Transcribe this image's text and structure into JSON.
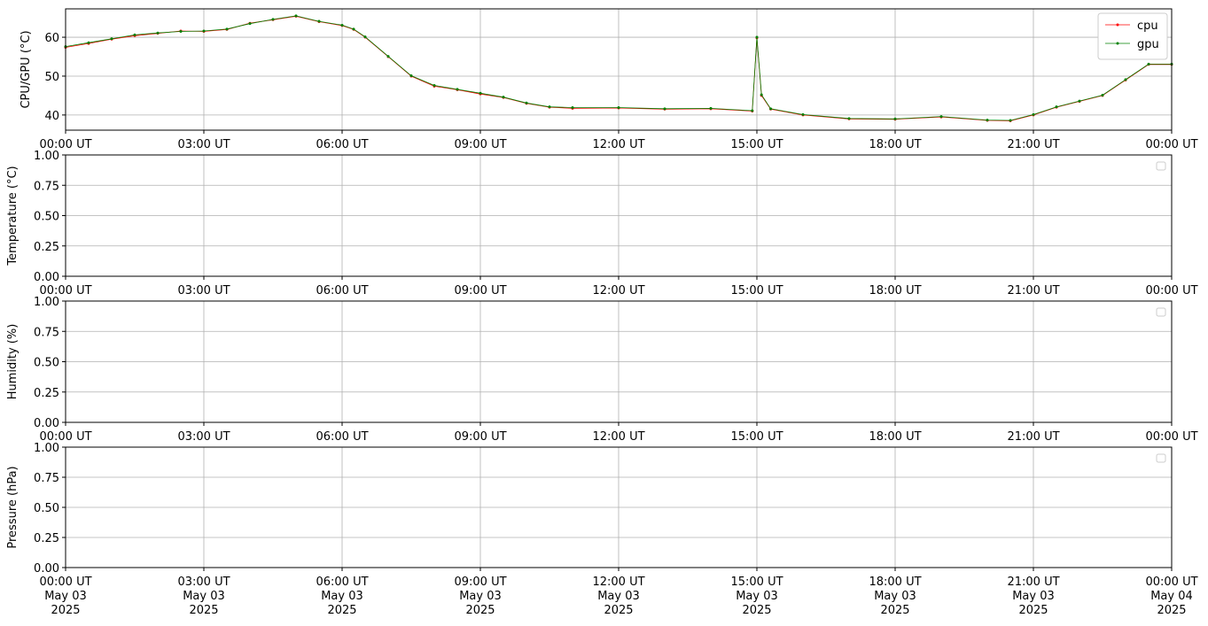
{
  "chart_data": [
    {
      "type": "line",
      "ylabel": "CPU/GPU (°C)",
      "grid": true,
      "legend": "upper right",
      "xlim": [
        0,
        24
      ],
      "xticks": [
        {
          "value": 0,
          "label": "00:00 UT"
        },
        {
          "value": 3,
          "label": "03:00 UT"
        },
        {
          "value": 6,
          "label": "06:00 UT"
        },
        {
          "value": 9,
          "label": "09:00 UT"
        },
        {
          "value": 12,
          "label": "12:00 UT"
        },
        {
          "value": 15,
          "label": "15:00 UT"
        },
        {
          "value": 18,
          "label": "18:00 UT"
        },
        {
          "value": 21,
          "label": "21:00 UT"
        },
        {
          "value": 24,
          "label": "00:00 UT"
        }
      ],
      "ylim": [
        36.1,
        67.3
      ],
      "yticks": [
        40,
        50,
        60
      ],
      "x": [
        0,
        0.5,
        1,
        1.5,
        2,
        2.5,
        3,
        3.5,
        4,
        4.5,
        5,
        5.5,
        6,
        6.25,
        6.5,
        7,
        7.5,
        8,
        8.5,
        9,
        9.5,
        10,
        10.5,
        11,
        12,
        13,
        14,
        14.9,
        15,
        15.1,
        15.3,
        16,
        17,
        18,
        19,
        20,
        20.5,
        21,
        21.5,
        22,
        22.5,
        23,
        23.5,
        24
      ],
      "series": [
        {
          "name": "cpu",
          "color": "#ff0000",
          "values": [
            57.4,
            58.4,
            59.5,
            60.4,
            61,
            61.6,
            61.5,
            62,
            63.6,
            64.5,
            65.4,
            64,
            63,
            62,
            60,
            55,
            50,
            47.4,
            46.5,
            45.4,
            44.5,
            43,
            42,
            41.7,
            41.8,
            41.5,
            41.6,
            41,
            59.8,
            45,
            41.5,
            40,
            39,
            38.9,
            39.5,
            38.6,
            38.5,
            40,
            42,
            43.5,
            45,
            49,
            53,
            53
          ]
        },
        {
          "name": "gpu",
          "color": "#008000",
          "values": [
            57.6,
            58.6,
            59.6,
            60.6,
            61.1,
            61.5,
            61.6,
            62.1,
            63.5,
            64.6,
            65.5,
            64.1,
            63.1,
            62.1,
            60.1,
            55.1,
            50.1,
            47.6,
            46.6,
            45.6,
            44.6,
            43.1,
            42.1,
            41.9,
            41.9,
            41.6,
            41.7,
            41.1,
            60,
            45.2,
            41.6,
            40.1,
            39.1,
            39,
            39.6,
            38.7,
            38.6,
            40.1,
            42.1,
            43.6,
            45.1,
            49.1,
            53.1,
            53.1
          ]
        }
      ]
    },
    {
      "type": "line",
      "ylabel": "Temperature (°C)",
      "grid": true,
      "legend": "upper right",
      "xlim": [
        0,
        24
      ],
      "xticks": [
        {
          "value": 0,
          "label": "00:00 UT"
        },
        {
          "value": 3,
          "label": "03:00 UT"
        },
        {
          "value": 6,
          "label": "06:00 UT"
        },
        {
          "value": 9,
          "label": "09:00 UT"
        },
        {
          "value": 12,
          "label": "12:00 UT"
        },
        {
          "value": 15,
          "label": "15:00 UT"
        },
        {
          "value": 18,
          "label": "18:00 UT"
        },
        {
          "value": 21,
          "label": "21:00 UT"
        },
        {
          "value": 24,
          "label": "00:00 UT"
        }
      ],
      "ylim": [
        0,
        1
      ],
      "yticks": [
        {
          "value": 0,
          "label": "0.00"
        },
        {
          "value": 0.25,
          "label": "0.25"
        },
        {
          "value": 0.5,
          "label": "0.50"
        },
        {
          "value": 0.75,
          "label": "0.75"
        },
        {
          "value": 1,
          "label": "1.00"
        }
      ],
      "series": []
    },
    {
      "type": "line",
      "ylabel": "Humidity (%)",
      "grid": true,
      "legend": "upper right",
      "xlim": [
        0,
        24
      ],
      "xticks": [
        {
          "value": 0,
          "label": "00:00 UT"
        },
        {
          "value": 3,
          "label": "03:00 UT"
        },
        {
          "value": 6,
          "label": "06:00 UT"
        },
        {
          "value": 9,
          "label": "09:00 UT"
        },
        {
          "value": 12,
          "label": "12:00 UT"
        },
        {
          "value": 15,
          "label": "15:00 UT"
        },
        {
          "value": 18,
          "label": "18:00 UT"
        },
        {
          "value": 21,
          "label": "21:00 UT"
        },
        {
          "value": 24,
          "label": "00:00 UT"
        }
      ],
      "ylim": [
        0,
        1
      ],
      "yticks": [
        {
          "value": 0,
          "label": "0.00"
        },
        {
          "value": 0.25,
          "label": "0.25"
        },
        {
          "value": 0.5,
          "label": "0.50"
        },
        {
          "value": 0.75,
          "label": "0.75"
        },
        {
          "value": 1,
          "label": "1.00"
        }
      ],
      "series": []
    },
    {
      "type": "line",
      "ylabel": "Pressure (hPa)",
      "grid": true,
      "legend": "upper right",
      "xlim": [
        0,
        24
      ],
      "xticks": [
        {
          "value": 0,
          "label": "00:00 UT\nMay 03\n2025"
        },
        {
          "value": 3,
          "label": "03:00 UT\nMay 03\n2025"
        },
        {
          "value": 6,
          "label": "06:00 UT\nMay 03\n2025"
        },
        {
          "value": 9,
          "label": "09:00 UT\nMay 03\n2025"
        },
        {
          "value": 12,
          "label": "12:00 UT\nMay 03\n2025"
        },
        {
          "value": 15,
          "label": "15:00 UT\nMay 03\n2025"
        },
        {
          "value": 18,
          "label": "18:00 UT\nMay 03\n2025"
        },
        {
          "value": 21,
          "label": "21:00 UT\nMay 03\n2025"
        },
        {
          "value": 24,
          "label": "00:00 UT\nMay 04\n2025"
        }
      ],
      "ylim": [
        0,
        1
      ],
      "yticks": [
        {
          "value": 0,
          "label": "0.00"
        },
        {
          "value": 0.25,
          "label": "0.25"
        },
        {
          "value": 0.5,
          "label": "0.50"
        },
        {
          "value": 0.75,
          "label": "0.75"
        },
        {
          "value": 1,
          "label": "1.00"
        }
      ],
      "series": []
    }
  ]
}
